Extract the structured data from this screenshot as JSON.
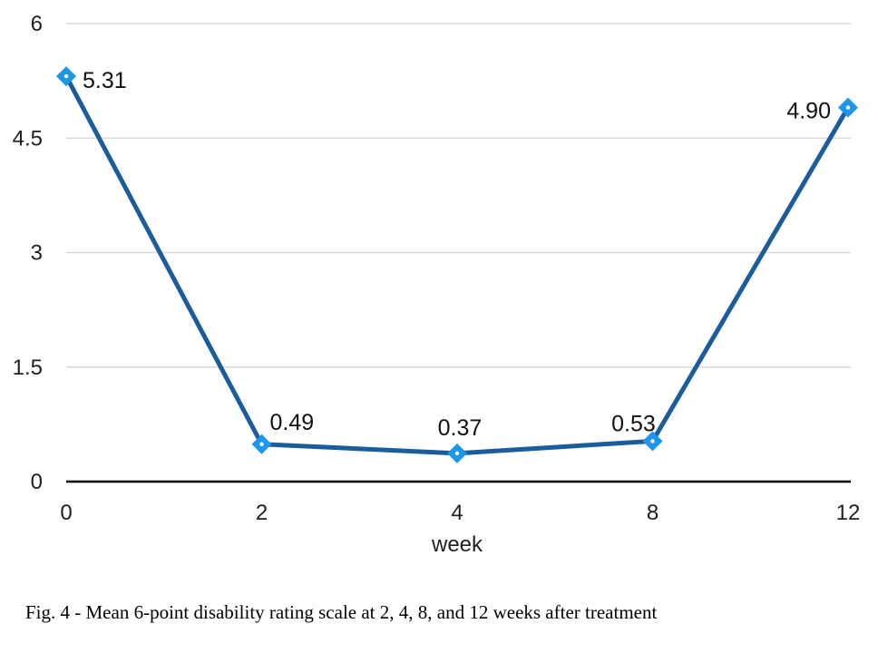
{
  "figure": {
    "caption": "Fig. 4 - Mean 6-point disability rating scale at 2, 4, 8, and 12 weeks after treatment"
  },
  "colors": {
    "line": "#1a5c9c",
    "marker_fill": "#1e96ec",
    "marker_center_dot": "#ffffff",
    "gridline": "#d9d9d9",
    "axis_line": "#000000",
    "tick_text": "#1f1f1f",
    "label_text": "#111111",
    "background": "#ffffff"
  },
  "chart_data": {
    "type": "line",
    "title": "",
    "x": [
      0,
      2,
      4,
      8,
      12
    ],
    "x_tick_labels": [
      "0",
      "2",
      "4",
      "8",
      "12"
    ],
    "values": [
      5.31,
      0.49,
      0.37,
      0.53,
      4.9
    ],
    "data_labels": [
      "5.31",
      "0.49",
      "0.37",
      "0.53",
      "4.90"
    ],
    "xlabel": "week",
    "ylabel": "",
    "ylim": [
      0,
      6
    ],
    "y_ticks": [
      0,
      1.5,
      3,
      4.5,
      6
    ],
    "y_tick_labels": [
      "0",
      "1.5",
      "3",
      "4.5",
      "6"
    ],
    "x_spacing": "categorical-equal",
    "grid": "horizontal",
    "legend": "none",
    "marker_shape": "diamond"
  }
}
